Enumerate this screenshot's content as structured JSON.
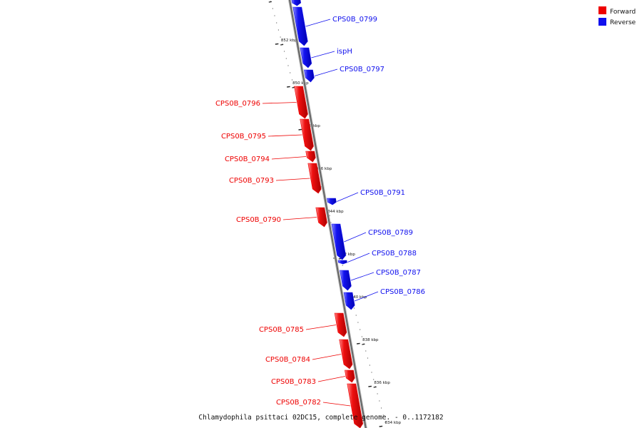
{
  "colors": {
    "forward": "#ee0000",
    "reverse": "#1010ee",
    "backbone": "#888888",
    "tick": "#222222"
  },
  "legend": {
    "forward_label": "Forward",
    "reverse_label": "Reverse"
  },
  "caption": "Chlamydophila psittaci 02DC15, complete genome. - 0..1172182",
  "genes": [
    {
      "name": "CPS0B_0799",
      "strand": "reverse"
    },
    {
      "name": "ispH",
      "strand": "reverse"
    },
    {
      "name": "CPS0B_0797",
      "strand": "reverse"
    },
    {
      "name": "CPS0B_0796",
      "strand": "forward"
    },
    {
      "name": "CPS0B_0795",
      "strand": "forward"
    },
    {
      "name": "CPS0B_0794",
      "strand": "forward"
    },
    {
      "name": "CPS0B_0793",
      "strand": "forward"
    },
    {
      "name": "CPS0B_0791",
      "strand": "reverse"
    },
    {
      "name": "CPS0B_0790",
      "strand": "forward"
    },
    {
      "name": "CPS0B_0789",
      "strand": "reverse"
    },
    {
      "name": "CPS0B_0788",
      "strand": "reverse"
    },
    {
      "name": "CPS0B_0787",
      "strand": "reverse"
    },
    {
      "name": "CPS0B_0786",
      "strand": "reverse"
    },
    {
      "name": "CPS0B_0785",
      "strand": "forward"
    },
    {
      "name": "CPS0B_0784",
      "strand": "forward"
    },
    {
      "name": "CPS0B_0783",
      "strand": "forward"
    },
    {
      "name": "CPS0B_0782",
      "strand": "forward"
    }
  ],
  "ticks": [
    "852 kbp",
    "850 kbp",
    "848 kbp",
    "846 kbp",
    "844 kbp",
    "842 kbp",
    "840 kbp",
    "838 kbp",
    "836 kbp",
    "834 kbp"
  ]
}
